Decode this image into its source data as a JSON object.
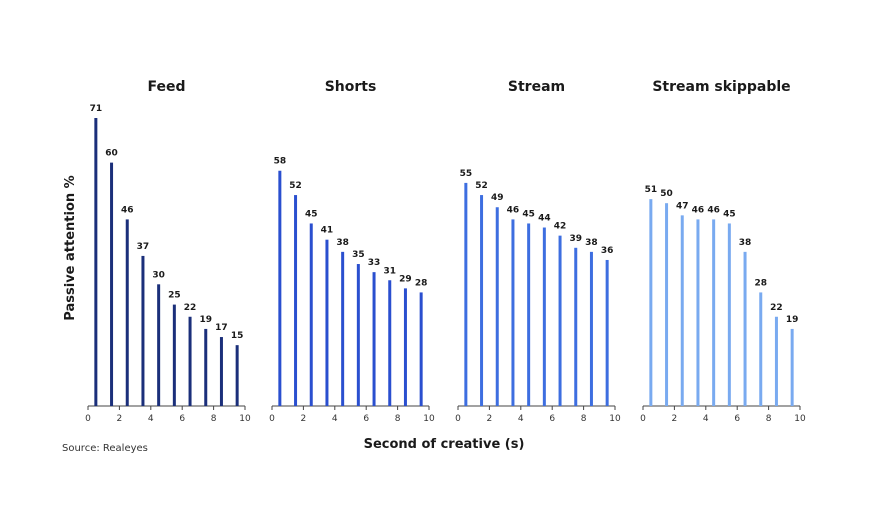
{
  "chart_data": {
    "type": "bar",
    "ylabel": "Passive attention %",
    "xlabel": "Second of creative (s)",
    "source": "Source: Realeyes",
    "x_ticks": [
      0,
      2,
      4,
      6,
      8,
      10
    ],
    "xlim": [
      0,
      10
    ],
    "ylim": [
      0,
      71
    ],
    "panels": [
      {
        "title": "Feed",
        "color": "#1b2f7a",
        "x": [
          0.5,
          1.5,
          2.5,
          3.5,
          4.5,
          5.5,
          6.5,
          7.5,
          8.5,
          9.5
        ],
        "values": [
          71,
          60,
          46,
          37,
          30,
          25,
          22,
          19,
          17,
          15
        ]
      },
      {
        "title": "Shorts",
        "color": "#2a4fcf",
        "x": [
          0.5,
          1.5,
          2.5,
          3.5,
          4.5,
          5.5,
          6.5,
          7.5,
          8.5,
          9.5
        ],
        "values": [
          58,
          52,
          45,
          41,
          38,
          35,
          33,
          31,
          29,
          28
        ]
      },
      {
        "title": "Stream",
        "color": "#3d6ee0",
        "x": [
          0.5,
          1.5,
          2.5,
          3.5,
          4.5,
          5.5,
          6.5,
          7.5,
          8.5,
          9.5
        ],
        "values": [
          55,
          52,
          49,
          46,
          45,
          44,
          42,
          39,
          38,
          36
        ]
      },
      {
        "title": "Stream skippable",
        "color": "#79aaf0",
        "x": [
          0.5,
          1.5,
          2.5,
          3.5,
          4.5,
          5.5,
          6.5,
          7.5,
          8.5,
          9.5
        ],
        "values": [
          51,
          50,
          47,
          46,
          46,
          45,
          38,
          28,
          22,
          19
        ]
      }
    ]
  }
}
